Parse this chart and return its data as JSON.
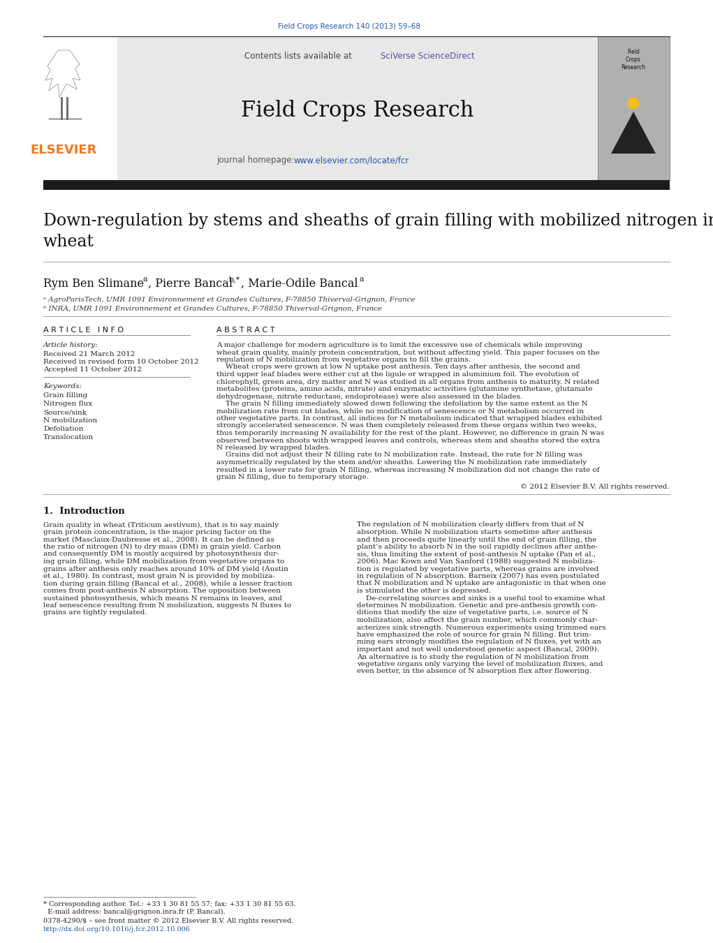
{
  "journal_ref": "Field Crops Research 140 (2013) 59–68",
  "journal_name": "Field Crops Research",
  "journal_url": "www.elsevier.com/locate/fcr",
  "contents_text": "Contents lists available at ",
  "sciverse_text": "SciVerse ScienceDirect",
  "elsevier_text": "ELSEVIER",
  "journal_homepage_text": "journal homepage: ",
  "title_line1": "Down-regulation by stems and sheaths of grain filling with mobilized nitrogen in",
  "title_line2": "wheat",
  "authors": "Rym Ben Slimane",
  "authors_sup1": "a",
  "authors_mid": ", Pierre Bancal",
  "authors_sup2": "b,*",
  "authors_end": ", Marie-Odile Bancal",
  "authors_sup3": "a",
  "affil_a": "ᵃ AgroParisTech, UMR 1091 Environnement et Grandes Cultures, F-78850 Thiverval-Grignon, France",
  "affil_b": "ᵇ INRA, UMR 1091 Environnement et Grandes Cultures, F-78850 Thiverval-Grignon, France",
  "article_history_label": "Article history:",
  "received": "Received 21 March 2012",
  "received_revised": "Received in revised form 10 October 2012",
  "accepted": "Accepted 11 October 2012",
  "keywords_label": "Keywords:",
  "keywords": [
    "Grain filling",
    "Nitrogen flux",
    "Source/sink",
    "N mobilization",
    "Defoliation",
    "Translocation"
  ],
  "abstract_lines": [
    "A major challenge for modern agriculture is to limit the excessive use of chemicals while improving",
    "wheat grain quality, mainly protein concentration, but without affecting yield. This paper focuses on the",
    "regulation of N mobilization from vegetative organs to fill the grains.",
    "    Wheat crops were grown at low N uptake post anthesis. Ten days after anthesis, the second and",
    "third upper leaf blades were either cut at the ligule or wrapped in aluminium foil. The evolution of",
    "chlorophyll, green area, dry matter and N was studied in all organs from anthesis to maturity. N related",
    "metabolites (proteins, amino acids, nitrate) and enzymatic activities (glutamine synthetase, glutamate",
    "dehydrogenase, nitrate reductase, endoprotease) were also assessed in the blades.",
    "    The grain N filling immediately slowed down following the defoliation by the same extent as the N",
    "mobilization rate from cut blades, while no modification of senescence or N metabolism occurred in",
    "other vegetative parts. In contrast, all indices for N metabolism indicated that wrapped blades exhibited",
    "strongly accelerated senescence. N was then completely released from these organs within two weeks,",
    "thus temporarily increasing N availability for the rest of the plant. However, no difference in grain N was",
    "observed between shoots with wrapped leaves and controls, whereas stem and sheaths stored the extra",
    "N released by wrapped blades.",
    "    Grains did not adjust their N filling rate to N mobilization rate. Instead, the rate for N filling was",
    "asymmetrically regulated by the stem and/or sheaths. Lowering the N mobilization rate immediately",
    "resulted in a lower rate for grain N filling, whereas increasing N mobilization did not change the rate of",
    "grain N filling, due to temporary storage."
  ],
  "copyright": "© 2012 Elsevier B.V. All rights reserved.",
  "intro_header": "1.  Introduction",
  "intro_left": [
    "Grain quality in wheat (Triticum aestivum), that is to say mainly",
    "grain protein concentration, is the major pricing factor on the",
    "market (Masclaux-Daubresse et al., 2008). It can be defined as",
    "the ratio of nitrogen (N) to dry mass (DM) in grain yield. Carbon",
    "and consequently DM is mostly acquired by photosynthesis dur-",
    "ing grain filling, while DM mobilization from vegetative organs to",
    "grains after anthesis only reaches around 10% of DM yield (Austin",
    "et al., 1980). In contrast, most grain N is provided by mobiliza-",
    "tion during grain filling (Bancal et al., 2008), while a lesser fraction",
    "comes from post-anthesis N absorption. The opposition between",
    "sustained photosynthesis, which means N remains in leaves, and",
    "leaf senescence resulting from N mobilization, suggests N fluxes to",
    "grains are tightly regulated."
  ],
  "intro_right": [
    "The regulation of N mobilization clearly differs from that of N",
    "absorption. While N mobilization starts sometime after anthesis",
    "and then proceeds quite linearly until the end of grain filling, the",
    "plant’s ability to absorb N in the soil rapidly declines after anthe-",
    "sis, thus limiting the extent of post-anthesis N uptake (Pan et al.,",
    "2006). Mac Kown and Van Sanford (1988) suggested N mobiliza-",
    "tion is regulated by vegetative parts, whereas grains are involved",
    "in regulation of N absorption. Barneix (2007) has even postulated",
    "that N mobilization and N uptake are antagonistic in that when one",
    "is stimulated the other is depressed.",
    "    De-correlating sources and sinks is a useful tool to examine what",
    "determines N mobilization. Genetic and pre-anthesis growth con-",
    "ditions that modify the size of vegetative parts, i.e. source of N",
    "mobilization, also affect the grain number, which commonly char-",
    "acterizes sink strength. Numerous experiments using trimmed ears",
    "have emphasized the role of source for grain N filling. But trim-",
    "ming ears strongly modifies the regulation of N fluxes, yet with an",
    "important and not well understood genetic aspect (Bancal, 2009).",
    "An alternative is to study the regulation of N mobilization from",
    "vegetative organs only varying the level of mobilization fluxes, and",
    "even better, in the absence of N absorption flux after flowering."
  ],
  "footnote_star": "* Corresponding author. Tel.: +33 1 30 81 55 57; fax: +33 1 30 81 55 63.",
  "footnote_email": "  E-mail address: bancal@grignon.inra.fr (P. Bancal).",
  "footnote_issn": "0378-4290/$ – see front matter © 2012 Elsevier B.V. All rights reserved.",
  "footnote_doi": "http://dx.doi.org/10.1016/j.fcr.2012.10.006",
  "bg_color": "#ffffff",
  "gray_bg": "#e8e8e8",
  "black_bar": "#1c1c1c",
  "orange": "#f47920",
  "blue_link": "#2255aa",
  "purple_link": "#6644aa",
  "text_dark": "#111111",
  "text_mid": "#222222",
  "text_gray": "#555555"
}
